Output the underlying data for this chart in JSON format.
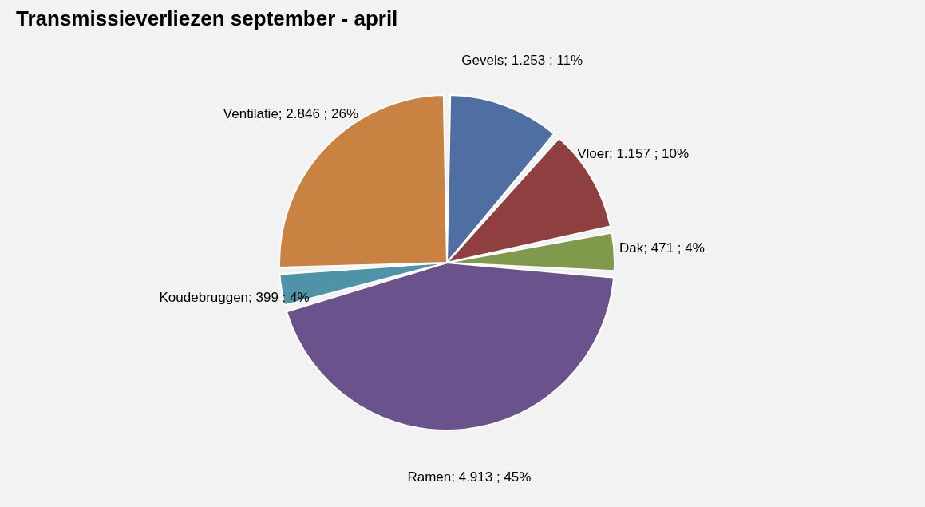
{
  "chart_data": {
    "type": "pie",
    "title": "Transmissieverliezen september - april",
    "categories": [
      "Gevels",
      "Vloer",
      "Dak",
      "Ramen",
      "Koudebruggen",
      "Ventilatie"
    ],
    "values": [
      1253,
      1157,
      471,
      4913,
      399,
      2846
    ],
    "value_labels": [
      "1.253 ; 11%",
      "1.157 ; 10%",
      "471 ; 4%",
      "4.913 ; 45%",
      "399 ; 4%",
      "2.846 ; 26%"
    ],
    "colors": [
      "#4f6fa3",
      "#8f3f3f",
      "#7f9a4a",
      "#6a538c",
      "#4f93a8",
      "#c98242"
    ],
    "legend": false
  }
}
